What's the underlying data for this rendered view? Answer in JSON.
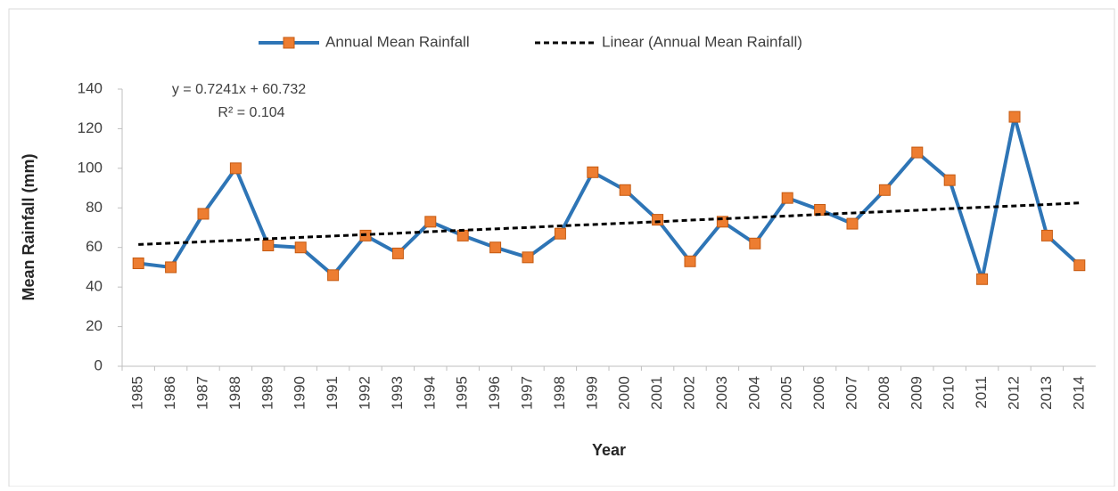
{
  "chart_data": {
    "type": "line",
    "xlabel": "Year",
    "ylabel": "Mean Rainfall (mm)",
    "categories": [
      "1985",
      "1986",
      "1987",
      "1988",
      "1989",
      "1990",
      "1991",
      "1992",
      "1993",
      "1994",
      "1995",
      "1996",
      "1997",
      "1998",
      "1999",
      "2000",
      "2001",
      "2002",
      "2003",
      "2004",
      "2005",
      "2006",
      "2007",
      "2008",
      "2009",
      "2010",
      "2011",
      "2012",
      "2013",
      "2014"
    ],
    "series": [
      {
        "name": "Annual Mean Rainfall",
        "color": "#2e75b6",
        "marker_color": "#ed7d31",
        "marker": "square",
        "dash": false,
        "values": [
          52,
          50,
          77,
          100,
          61,
          60,
          46,
          66,
          57,
          73,
          66,
          60,
          55,
          67,
          98,
          89,
          74,
          53,
          73,
          62,
          85,
          79,
          72,
          89,
          108,
          94,
          44,
          126,
          66,
          51
        ]
      },
      {
        "name": "Linear (Annual Mean Rainfall)",
        "color": "#000000",
        "marker": "none",
        "dash": true,
        "values": [
          61.5,
          62.2,
          62.9,
          63.6,
          64.4,
          65.1,
          65.8,
          66.5,
          67.2,
          68.0,
          68.7,
          69.4,
          70.1,
          70.9,
          71.6,
          72.3,
          73.0,
          73.8,
          74.5,
          75.2,
          75.9,
          76.7,
          77.4,
          78.1,
          78.8,
          79.6,
          80.3,
          81.0,
          81.7,
          82.5
        ]
      }
    ],
    "annotations": [
      "y = 0.7241x + 60.732",
      "R² = 0.104"
    ],
    "ylim": [
      0,
      140
    ],
    "yticks": [
      0,
      20,
      40,
      60,
      80,
      100,
      120,
      140
    ],
    "grid": false,
    "legend": "top"
  }
}
